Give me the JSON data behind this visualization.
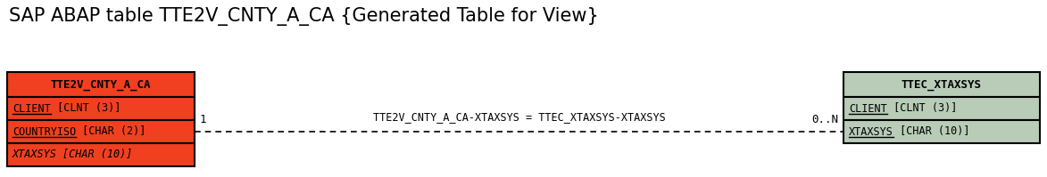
{
  "title": "SAP ABAP table TTE2V_CNTY_A_CA {Generated Table for View}",
  "title_fontsize": 15,
  "left_table": {
    "name": "TTE2V_CNTY_A_CA",
    "fields": [
      "CLIENT [CLNT (3)]",
      "COUNTRYISO [CHAR (2)]",
      "XTAXSYS [CHAR (10)]"
    ],
    "field_styles": [
      "underline",
      "underline",
      "italic"
    ],
    "field_underline_keys": [
      "CLIENT",
      "COUNTRYISO",
      ""
    ],
    "header_bg": "#f04020",
    "field_bg": "#f04020",
    "border_color": "#000000",
    "text_color": "#000000",
    "header_text_color": "#000000"
  },
  "right_table": {
    "name": "TTEC_XTAXSYS",
    "fields": [
      "CLIENT [CLNT (3)]",
      "XTAXSYS [CHAR (10)]"
    ],
    "field_styles": [
      "underline",
      "underline"
    ],
    "field_underline_keys": [
      "CLIENT",
      "XTAXSYS"
    ],
    "header_bg": "#b8ccb8",
    "field_bg": "#b8ccb8",
    "border_color": "#000000",
    "text_color": "#000000",
    "header_text_color": "#000000"
  },
  "relation_label": "TTE2V_CNTY_A_CA-XTAXSYS = TTEC_XTAXSYS-XTAXSYS",
  "cardinality_left": "1",
  "cardinality_right": "0..N",
  "line_color": "#000000",
  "bg_color": "#ffffff"
}
